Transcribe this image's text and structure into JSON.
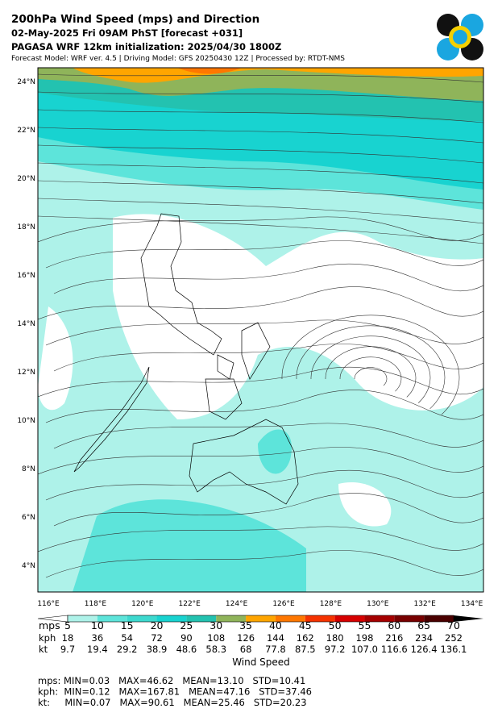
{
  "header": {
    "title": "200hPa Wind Speed (mps) and Direction",
    "line2": "02-May-2025 Fri 09AM PhST [forecast +031]",
    "line3": "PAGASA WRF 12km initialization: 2025/04/30 1800Z",
    "line4": "Forecast Model: WRF ver. 4.5 | Driving Model: GFS 20250430 12Z | Processed by: RTDT-NMS"
  },
  "map": {
    "lat_labels": [
      "24°N",
      "22°N",
      "20°N",
      "18°N",
      "16°N",
      "14°N",
      "12°N",
      "10°N",
      "8°N",
      "6°N",
      "4°N"
    ],
    "lon_labels": [
      "116°E",
      "118°E",
      "120°E",
      "122°E",
      "124°E",
      "126°E",
      "128°E",
      "130°E",
      "132°E",
      "134°E"
    ]
  },
  "colorbar": {
    "row_labels": [
      "mps",
      "kph",
      "kt"
    ],
    "rows": [
      [
        5,
        10,
        15,
        20,
        25,
        30,
        35,
        40,
        45,
        50,
        55,
        60,
        65,
        70
      ],
      [
        18,
        36,
        54,
        72,
        90,
        108,
        126,
        144,
        162,
        180,
        198,
        216,
        234,
        252
      ],
      [
        9.7,
        19.4,
        29.2,
        38.9,
        48.6,
        58.3,
        68.0,
        77.8,
        87.5,
        97.2,
        "107.0",
        116.6,
        126.4,
        136.1
      ]
    ],
    "title": "Wind Speed",
    "colors": [
      "#ffffff",
      "#aef2e9",
      "#5de4da",
      "#3dd9cf",
      "#18d3d0",
      "#23c2b0",
      "#8fb45a",
      "#ffa500",
      "#ff7700",
      "#f53200",
      "#d60000",
      "#a50000",
      "#780000",
      "#4a0000",
      "#000000"
    ]
  },
  "stats": [
    "mps: MIN=0.03   MAX=46.62   MEAN=13.10   STD=10.41",
    "kph:  MIN=0.12   MAX=167.81   MEAN=47.16   STD=37.46",
    "kt:     MIN=0.07   MAX=90.61   MEAN=25.46   STD=20.23"
  ]
}
